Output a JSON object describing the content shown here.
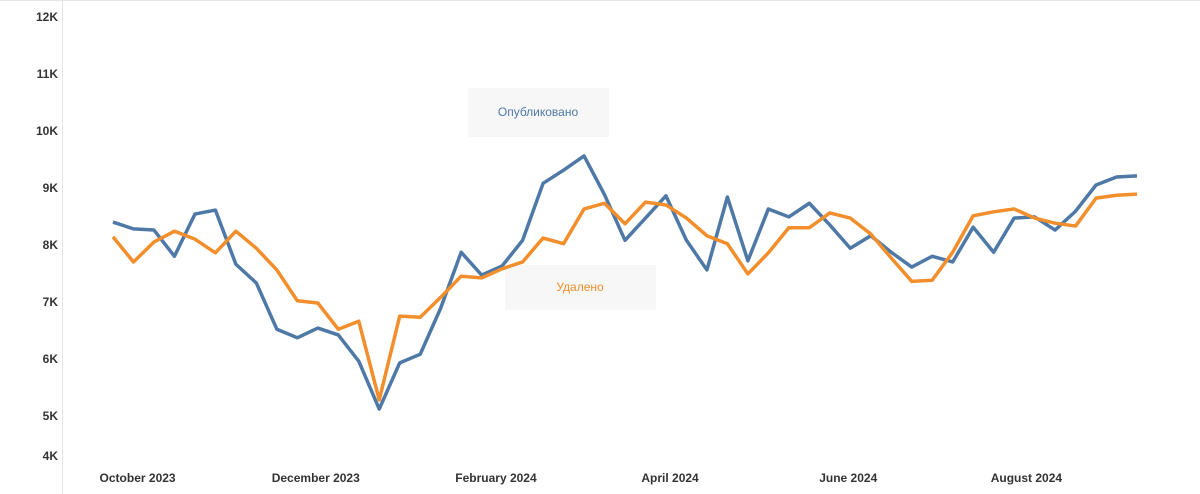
{
  "chart_data": {
    "type": "line",
    "x": [
      0,
      1,
      2,
      3,
      4,
      5,
      6,
      7,
      8,
      9,
      10,
      11,
      12,
      13,
      14,
      15,
      16,
      17,
      18,
      19,
      20,
      21,
      22,
      23,
      24,
      25,
      26,
      27,
      28,
      29,
      30,
      31,
      32,
      33,
      34,
      35,
      36,
      37,
      38,
      39,
      40,
      41,
      42,
      43,
      44,
      45,
      46,
      47,
      48,
      49,
      50
    ],
    "xlim": [
      0,
      50
    ],
    "xticks": [
      {
        "value": 1.2,
        "label": "October 2023"
      },
      {
        "value": 9.9,
        "label": "December 2023"
      },
      {
        "value": 18.7,
        "label": "February 2024"
      },
      {
        "value": 27.2,
        "label": "April 2024"
      },
      {
        "value": 35.9,
        "label": "June 2024"
      },
      {
        "value": 44.6,
        "label": "August 2024"
      }
    ],
    "ylim": [
      4000,
      12000
    ],
    "yticks": [
      {
        "value": 4000,
        "label": "4K"
      },
      {
        "value": 5000,
        "label": "5K"
      },
      {
        "value": 6000,
        "label": "6K"
      },
      {
        "value": 7000,
        "label": "7K"
      },
      {
        "value": 8000,
        "label": "8K"
      },
      {
        "value": 9000,
        "label": "9K"
      },
      {
        "value": 10000,
        "label": "10K"
      },
      {
        "value": 11000,
        "label": "11K"
      },
      {
        "value": 12000,
        "label": "12K"
      }
    ],
    "series": [
      {
        "name": "Опубликовано",
        "color": "#4e79a7",
        "values": [
          8420,
          8300,
          8280,
          7820,
          8560,
          8630,
          7680,
          7350,
          6540,
          6390,
          6560,
          6440,
          5980,
          5140,
          5950,
          6100,
          6910,
          7890,
          7490,
          7650,
          8100,
          9100,
          9330,
          9580,
          8900,
          8100,
          8490,
          8880,
          8100,
          7580,
          8860,
          7740,
          8650,
          8510,
          8750,
          8370,
          7960,
          8180,
          7890,
          7630,
          7820,
          7720,
          8330,
          7890,
          8490,
          8510,
          8280,
          8610,
          9070,
          9210,
          9230
        ]
      },
      {
        "name": "Удалено",
        "color": "#f28e2b",
        "values": [
          8160,
          7720,
          8070,
          8260,
          8120,
          7880,
          8260,
          7960,
          7580,
          7040,
          7000,
          6540,
          6680,
          5300,
          6770,
          6750,
          7100,
          7470,
          7440,
          7600,
          7720,
          8140,
          8040,
          8650,
          8750,
          8390,
          8770,
          8720,
          8490,
          8180,
          8040,
          7510,
          7880,
          8320,
          8320,
          8580,
          8490,
          8210,
          7790,
          7380,
          7400,
          7890,
          8530,
          8600,
          8650,
          8490,
          8400,
          8350,
          8840,
          8890,
          8910
        ]
      }
    ]
  }
}
